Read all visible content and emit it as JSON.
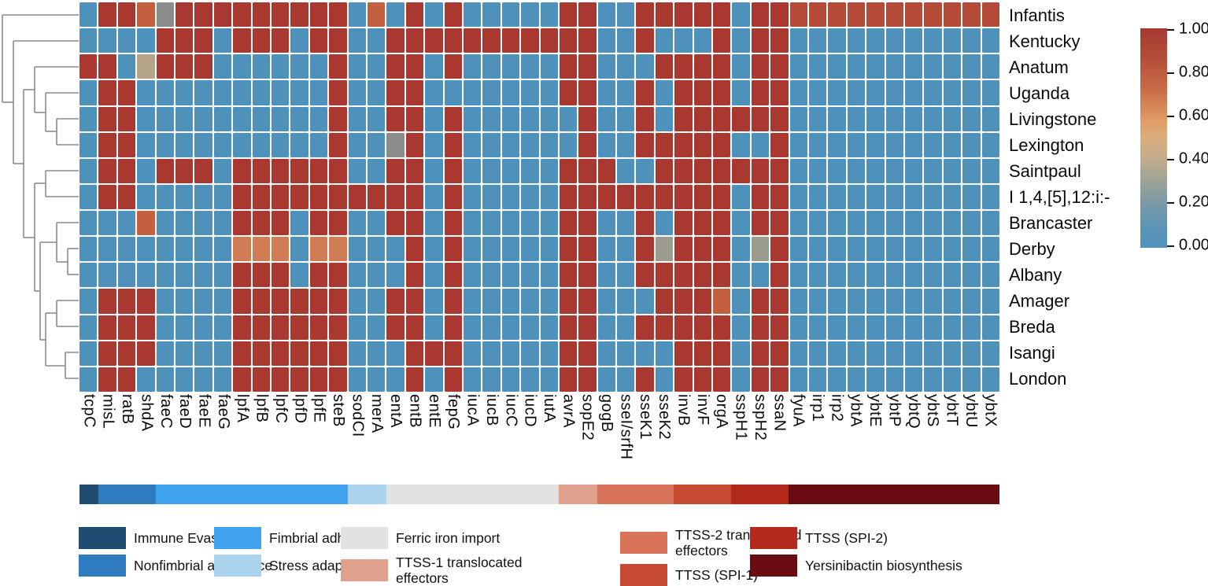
{
  "chart_data": {
    "type": "heatmap",
    "rows": [
      "Infantis",
      "Kentucky",
      "Anatum",
      "Uganda",
      "Livingstone",
      "Lexington",
      "Saintpaul",
      "I 1,4,[5],12:i:-",
      "Brancaster",
      "Derby",
      "Albany",
      "Amager",
      "Breda",
      "Isangi",
      "London"
    ],
    "columns": [
      "tcpC",
      "misL",
      "ratB",
      "shdA",
      "faeC",
      "faeD",
      "faeE",
      "faeG",
      "lpfA",
      "lpfB",
      "lpfC",
      "lpfD",
      "lpfE",
      "steB",
      "sodCI",
      "merA",
      "entA",
      "entB",
      "entE",
      "fepG",
      "iucA",
      "iucB",
      "iucC",
      "iucD",
      "iutA",
      "avrA",
      "sopE2",
      "gogB",
      "sseI/srfH",
      "sseK1",
      "sseK2",
      "invB",
      "invF",
      "orgA",
      "sspH1",
      "sspH2",
      "ssaN",
      "fyuA",
      "irp1",
      "irp2",
      "ybtA",
      "ybtE",
      "ybtP",
      "ybtQ",
      "ybtS",
      "ybtT",
      "ybtU",
      "ybtX"
    ],
    "values": [
      [
        0,
        1,
        1,
        0.75,
        0.25,
        1,
        1,
        1,
        1,
        1,
        1,
        1,
        1,
        1,
        0,
        0.75,
        0,
        1,
        0,
        1,
        0,
        0,
        0,
        0,
        0,
        1,
        1,
        0,
        0,
        1,
        1,
        1,
        1,
        1,
        0,
        1,
        1,
        0.9,
        0.9,
        0.9,
        0.9,
        0.9,
        0.9,
        0.9,
        0.9,
        0.9,
        0.9,
        0.9
      ],
      [
        0,
        0,
        0,
        0,
        1,
        1,
        1,
        0,
        1,
        1,
        1,
        0,
        1,
        1,
        0,
        0,
        1,
        1,
        1,
        1,
        1,
        1,
        1,
        1,
        1,
        1,
        1,
        0,
        0,
        1,
        0,
        0,
        0,
        1,
        0,
        1,
        1,
        0,
        0,
        0,
        0,
        0,
        0,
        0,
        0,
        0,
        0,
        0
      ],
      [
        1,
        1,
        0,
        0.45,
        1,
        1,
        1,
        0,
        0,
        0,
        0,
        0,
        0,
        1,
        0,
        0,
        1,
        1,
        0,
        1,
        0,
        0,
        0,
        0,
        0,
        1,
        1,
        0,
        0,
        0,
        1,
        1,
        1,
        1,
        0,
        1,
        1,
        0,
        0,
        0,
        0,
        0,
        0,
        0,
        0,
        0,
        0,
        0
      ],
      [
        0,
        1,
        1,
        0,
        0,
        0,
        0,
        0,
        0,
        0,
        0,
        0,
        0,
        1,
        0,
        0,
        1,
        1,
        0,
        0,
        0,
        0,
        0,
        0,
        0,
        1,
        1,
        0,
        0,
        1,
        0,
        1,
        1,
        1,
        0,
        1,
        1,
        0,
        0,
        0,
        0,
        0,
        0,
        0,
        0,
        0,
        0,
        0
      ],
      [
        0,
        1,
        1,
        0,
        0,
        0,
        0,
        0,
        0,
        0,
        0,
        0,
        0,
        1,
        0,
        0,
        1,
        1,
        0,
        1,
        0,
        0,
        0,
        0,
        0,
        0,
        1,
        0,
        0,
        1,
        0,
        1,
        1,
        1,
        1,
        1,
        1,
        0,
        0,
        0,
        0,
        0,
        0,
        0,
        0,
        0,
        0,
        0
      ],
      [
        0,
        1,
        1,
        0,
        0,
        0,
        0,
        0,
        0,
        0,
        0,
        0,
        0,
        1,
        0,
        0,
        0.25,
        1,
        0,
        1,
        0,
        0,
        0,
        0,
        0,
        0,
        1,
        0,
        0,
        1,
        1,
        1,
        1,
        1,
        0,
        0,
        1,
        0,
        0,
        0,
        0,
        0,
        0,
        0,
        0,
        0,
        0,
        0
      ],
      [
        0,
        1,
        1,
        0,
        1,
        1,
        1,
        0,
        1,
        1,
        1,
        1,
        1,
        1,
        0,
        0,
        1,
        1,
        0,
        1,
        0,
        0,
        0,
        0,
        0,
        1,
        1,
        1,
        0,
        0,
        1,
        1,
        1,
        1,
        1,
        1,
        1,
        0,
        0,
        0,
        0,
        0,
        0,
        0,
        0,
        0,
        0,
        0
      ],
      [
        0,
        1,
        1,
        0,
        0,
        0,
        0,
        0,
        1,
        1,
        1,
        1,
        1,
        1,
        1,
        1,
        1,
        1,
        0,
        1,
        0,
        0,
        0,
        0,
        0,
        1,
        1,
        1,
        1,
        1,
        1,
        1,
        1,
        1,
        0,
        1,
        1,
        0,
        0,
        0,
        0,
        0,
        0,
        0,
        0,
        0,
        0,
        0
      ],
      [
        0,
        0,
        0,
        0.75,
        0,
        0,
        0,
        0,
        1,
        1,
        1,
        0,
        1,
        1,
        0,
        0,
        1,
        1,
        0,
        1,
        0,
        0,
        0,
        0,
        0,
        1,
        1,
        0,
        0,
        1,
        0,
        1,
        1,
        1,
        0,
        1,
        1,
        0,
        0,
        0,
        0,
        0,
        0,
        0,
        0,
        0,
        0,
        0
      ],
      [
        0,
        0,
        0,
        0,
        0,
        0,
        0,
        0,
        0.65,
        0.65,
        0.65,
        0,
        0.65,
        0.65,
        0,
        0,
        0,
        1,
        0,
        1,
        0,
        0,
        0,
        0,
        0,
        1,
        1,
        0,
        0,
        1,
        0.3,
        1,
        1,
        1,
        0,
        0.3,
        1,
        0,
        0,
        0,
        0,
        0,
        0,
        0,
        0,
        0,
        0,
        0
      ],
      [
        0,
        0,
        0,
        0,
        0,
        0,
        0,
        0,
        1,
        1,
        1,
        0,
        1,
        1,
        0,
        0,
        0,
        1,
        0,
        1,
        0,
        0,
        0,
        0,
        0,
        1,
        1,
        0,
        0,
        1,
        1,
        1,
        1,
        1,
        0,
        0,
        1,
        0,
        0,
        0,
        0,
        0,
        0,
        0,
        0,
        0,
        0,
        0
      ],
      [
        0,
        1,
        1,
        1,
        0,
        0,
        0,
        0,
        1,
        1,
        1,
        1,
        1,
        1,
        0,
        0,
        1,
        1,
        0,
        1,
        0,
        0,
        0,
        0,
        0,
        1,
        1,
        0,
        0,
        0,
        1,
        1,
        1,
        0.75,
        0,
        1,
        1,
        0,
        0,
        0,
        0,
        0,
        0,
        0,
        0,
        0,
        0,
        0
      ],
      [
        0,
        1,
        1,
        1,
        0,
        0,
        0,
        0,
        1,
        1,
        1,
        1,
        1,
        1,
        0,
        0,
        1,
        1,
        0,
        1,
        0,
        0,
        0,
        0,
        0,
        1,
        1,
        0,
        0,
        1,
        1,
        1,
        1,
        1,
        0,
        1,
        1,
        0,
        0,
        0,
        0,
        0,
        0,
        0,
        0,
        0,
        0,
        0
      ],
      [
        0,
        1,
        1,
        1,
        0,
        0,
        0,
        0,
        1,
        1,
        1,
        1,
        1,
        1,
        0,
        0,
        0,
        1,
        1,
        1,
        0,
        0,
        0,
        0,
        0,
        1,
        1,
        0,
        0,
        0,
        0,
        1,
        1,
        1,
        0,
        1,
        1,
        0,
        0,
        0,
        0,
        0,
        0,
        0,
        0,
        0,
        0,
        0
      ],
      [
        0,
        1,
        1,
        0,
        0,
        0,
        0,
        0,
        1,
        1,
        1,
        1,
        1,
        1,
        0,
        0,
        0,
        1,
        0,
        1,
        0,
        0,
        0,
        0,
        0,
        1,
        1,
        0,
        0,
        1,
        0,
        1,
        1,
        1,
        0,
        1,
        1,
        0,
        0,
        0,
        0,
        0,
        0,
        0,
        0,
        0,
        0,
        0
      ]
    ],
    "value_colors": {
      "0": "#4e92bb",
      "0.25": "#8b8c8b",
      "0.3": "#9c9c8e",
      "0.45": "#b5a488",
      "0.65": "#d07c54",
      "0.75": "#c3603f",
      "0.9": "#b54a39",
      "1": "#a93831"
    },
    "colorbar": {
      "min": 0,
      "max": 1,
      "tick_labels": [
        "1.00",
        "0.80",
        "0.60",
        "0.40",
        "0.20",
        "0.00"
      ]
    },
    "gene_categories": [
      {
        "label": "Immune Evasion",
        "legend_label": "Immune Evasion",
        "color": "#1f4d72",
        "span": 1
      },
      {
        "label": "Nonfimbrial adherence",
        "legend_label": "Nonfimbrial adherence",
        "color": "#2e7cbf",
        "span": 3
      },
      {
        "label": "Fimbrial adherence",
        "legend_label": "Fimbrial adherence",
        "color": "#3fa3f0",
        "span": 10
      },
      {
        "label": "Stress adaptation",
        "legend_label": "Stress adaptation",
        "color": "#aad4ee",
        "span": 2
      },
      {
        "label": "Ferric iron import",
        "legend_label": "Ferric iron import",
        "color": "#e2e2e2",
        "span": 9
      },
      {
        "label": "TTSS-1 translocated effectors",
        "legend_label": "TTSS-1 translocated\neffectors",
        "color": "#dfa18e",
        "span": 2
      },
      {
        "label": "TTSS-2 translocated effectors",
        "legend_label": "TTSS-2 translocated\neffectors",
        "color": "#d9745a",
        "span": 4
      },
      {
        "label": "TTSS (SPI-1)",
        "legend_label": "TTSS (SPI-1)",
        "color": "#c64a31",
        "span": 3
      },
      {
        "label": "TTSS (SPI-2)",
        "legend_label": "TTSS (SPI-2)",
        "color": "#b3291c",
        "span": 3
      },
      {
        "label": "Yersinibactin biosynthesis",
        "legend_label": "Yersinibactin biosynthesis",
        "color": "#6b0c12",
        "span": 11
      }
    ],
    "legend_columns": [
      [
        0,
        1
      ],
      [
        2,
        3
      ],
      [
        4,
        5
      ],
      [
        6,
        7
      ],
      [
        8,
        9
      ]
    ],
    "legend_column_lefts": [
      100,
      272,
      433,
      788,
      953
    ],
    "dendrogram": {
      "color": "#8a8a8a",
      "segments": [
        [
          3,
          19,
          100,
          19
        ],
        [
          17,
          52,
          100,
          52
        ],
        [
          44,
          85,
          100,
          85
        ],
        [
          58,
          118,
          100,
          118
        ],
        [
          72,
          151,
          100,
          151
        ],
        [
          72,
          184,
          100,
          184
        ],
        [
          58,
          217,
          100,
          217
        ],
        [
          58,
          250,
          100,
          250
        ],
        [
          72,
          283,
          100,
          283
        ],
        [
          86,
          316,
          100,
          316
        ],
        [
          86,
          349,
          100,
          349
        ],
        [
          72,
          382,
          100,
          382
        ],
        [
          72,
          415,
          100,
          415
        ],
        [
          83,
          448,
          100,
          448
        ],
        [
          83,
          481,
          100,
          481
        ],
        [
          72,
          151,
          72,
          184
        ],
        [
          58,
          118,
          58,
          167
        ],
        [
          44,
          85,
          44,
          143
        ],
        [
          58,
          217,
          58,
          250
        ],
        [
          86,
          316,
          86,
          349
        ],
        [
          72,
          283,
          72,
          333
        ],
        [
          72,
          382,
          72,
          415
        ],
        [
          83,
          448,
          83,
          481
        ],
        [
          58,
          398,
          58,
          465
        ],
        [
          51,
          308,
          51,
          432
        ],
        [
          44,
          233,
          44,
          370
        ],
        [
          30,
          114,
          30,
          302
        ],
        [
          17,
          52,
          17,
          208
        ],
        [
          3,
          19,
          3,
          130
        ],
        [
          58,
          167,
          72,
          167
        ],
        [
          44,
          143,
          58,
          143
        ],
        [
          72,
          333,
          86,
          333
        ],
        [
          58,
          398,
          72,
          398
        ],
        [
          58,
          465,
          83,
          465
        ],
        [
          51,
          308,
          72,
          308
        ],
        [
          51,
          432,
          58,
          432
        ],
        [
          44,
          233,
          58,
          233
        ],
        [
          44,
          370,
          51,
          370
        ],
        [
          30,
          114,
          44,
          114
        ],
        [
          30,
          302,
          44,
          302
        ],
        [
          17,
          208,
          30,
          208
        ],
        [
          3,
          130,
          17,
          130
        ]
      ]
    }
  }
}
